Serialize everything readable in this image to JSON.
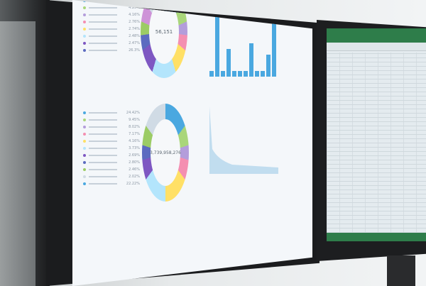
{
  "top_donut": {
    "total": "56,151",
    "colors": [
      "#4aa8e0",
      "#a9d67a",
      "#b39ddb",
      "#f48fb1",
      "#ffe066",
      "#b3e5fc",
      "#7e57c2",
      "#5c6bc0",
      "#9ccc65",
      "#ce93d8",
      "#d0dbe5"
    ]
  },
  "top_legend": {
    "percents": [
      "6.48%",
      "4.25%",
      "4.16%",
      "2.76%",
      "2.74%",
      "2.48%",
      "2.47%",
      "26.3%"
    ]
  },
  "bottom_donut": {
    "total": "3,739,958,276",
    "colors": [
      "#4aa8e0",
      "#a9d67a",
      "#b39ddb",
      "#f48fb1",
      "#ffe066",
      "#b3e5fc",
      "#7e57c2",
      "#5c6bc0",
      "#9ccc65",
      "#d0dbe5"
    ]
  },
  "bottom_legend": {
    "percents": [
      "24.42%",
      "9.45%",
      "8.02%",
      "7.17%",
      "4.16%",
      "3.73%",
      "2.69%",
      "2.80%",
      "2.46%",
      "2.02%",
      "22.22%"
    ]
  },
  "bar_chart": {
    "values": [
      1,
      14,
      1,
      5,
      1,
      1,
      1,
      6,
      1,
      1,
      4,
      10
    ],
    "color": "#4aa8e0"
  },
  "area_chart": {
    "color": "#9fcbe8"
  }
}
